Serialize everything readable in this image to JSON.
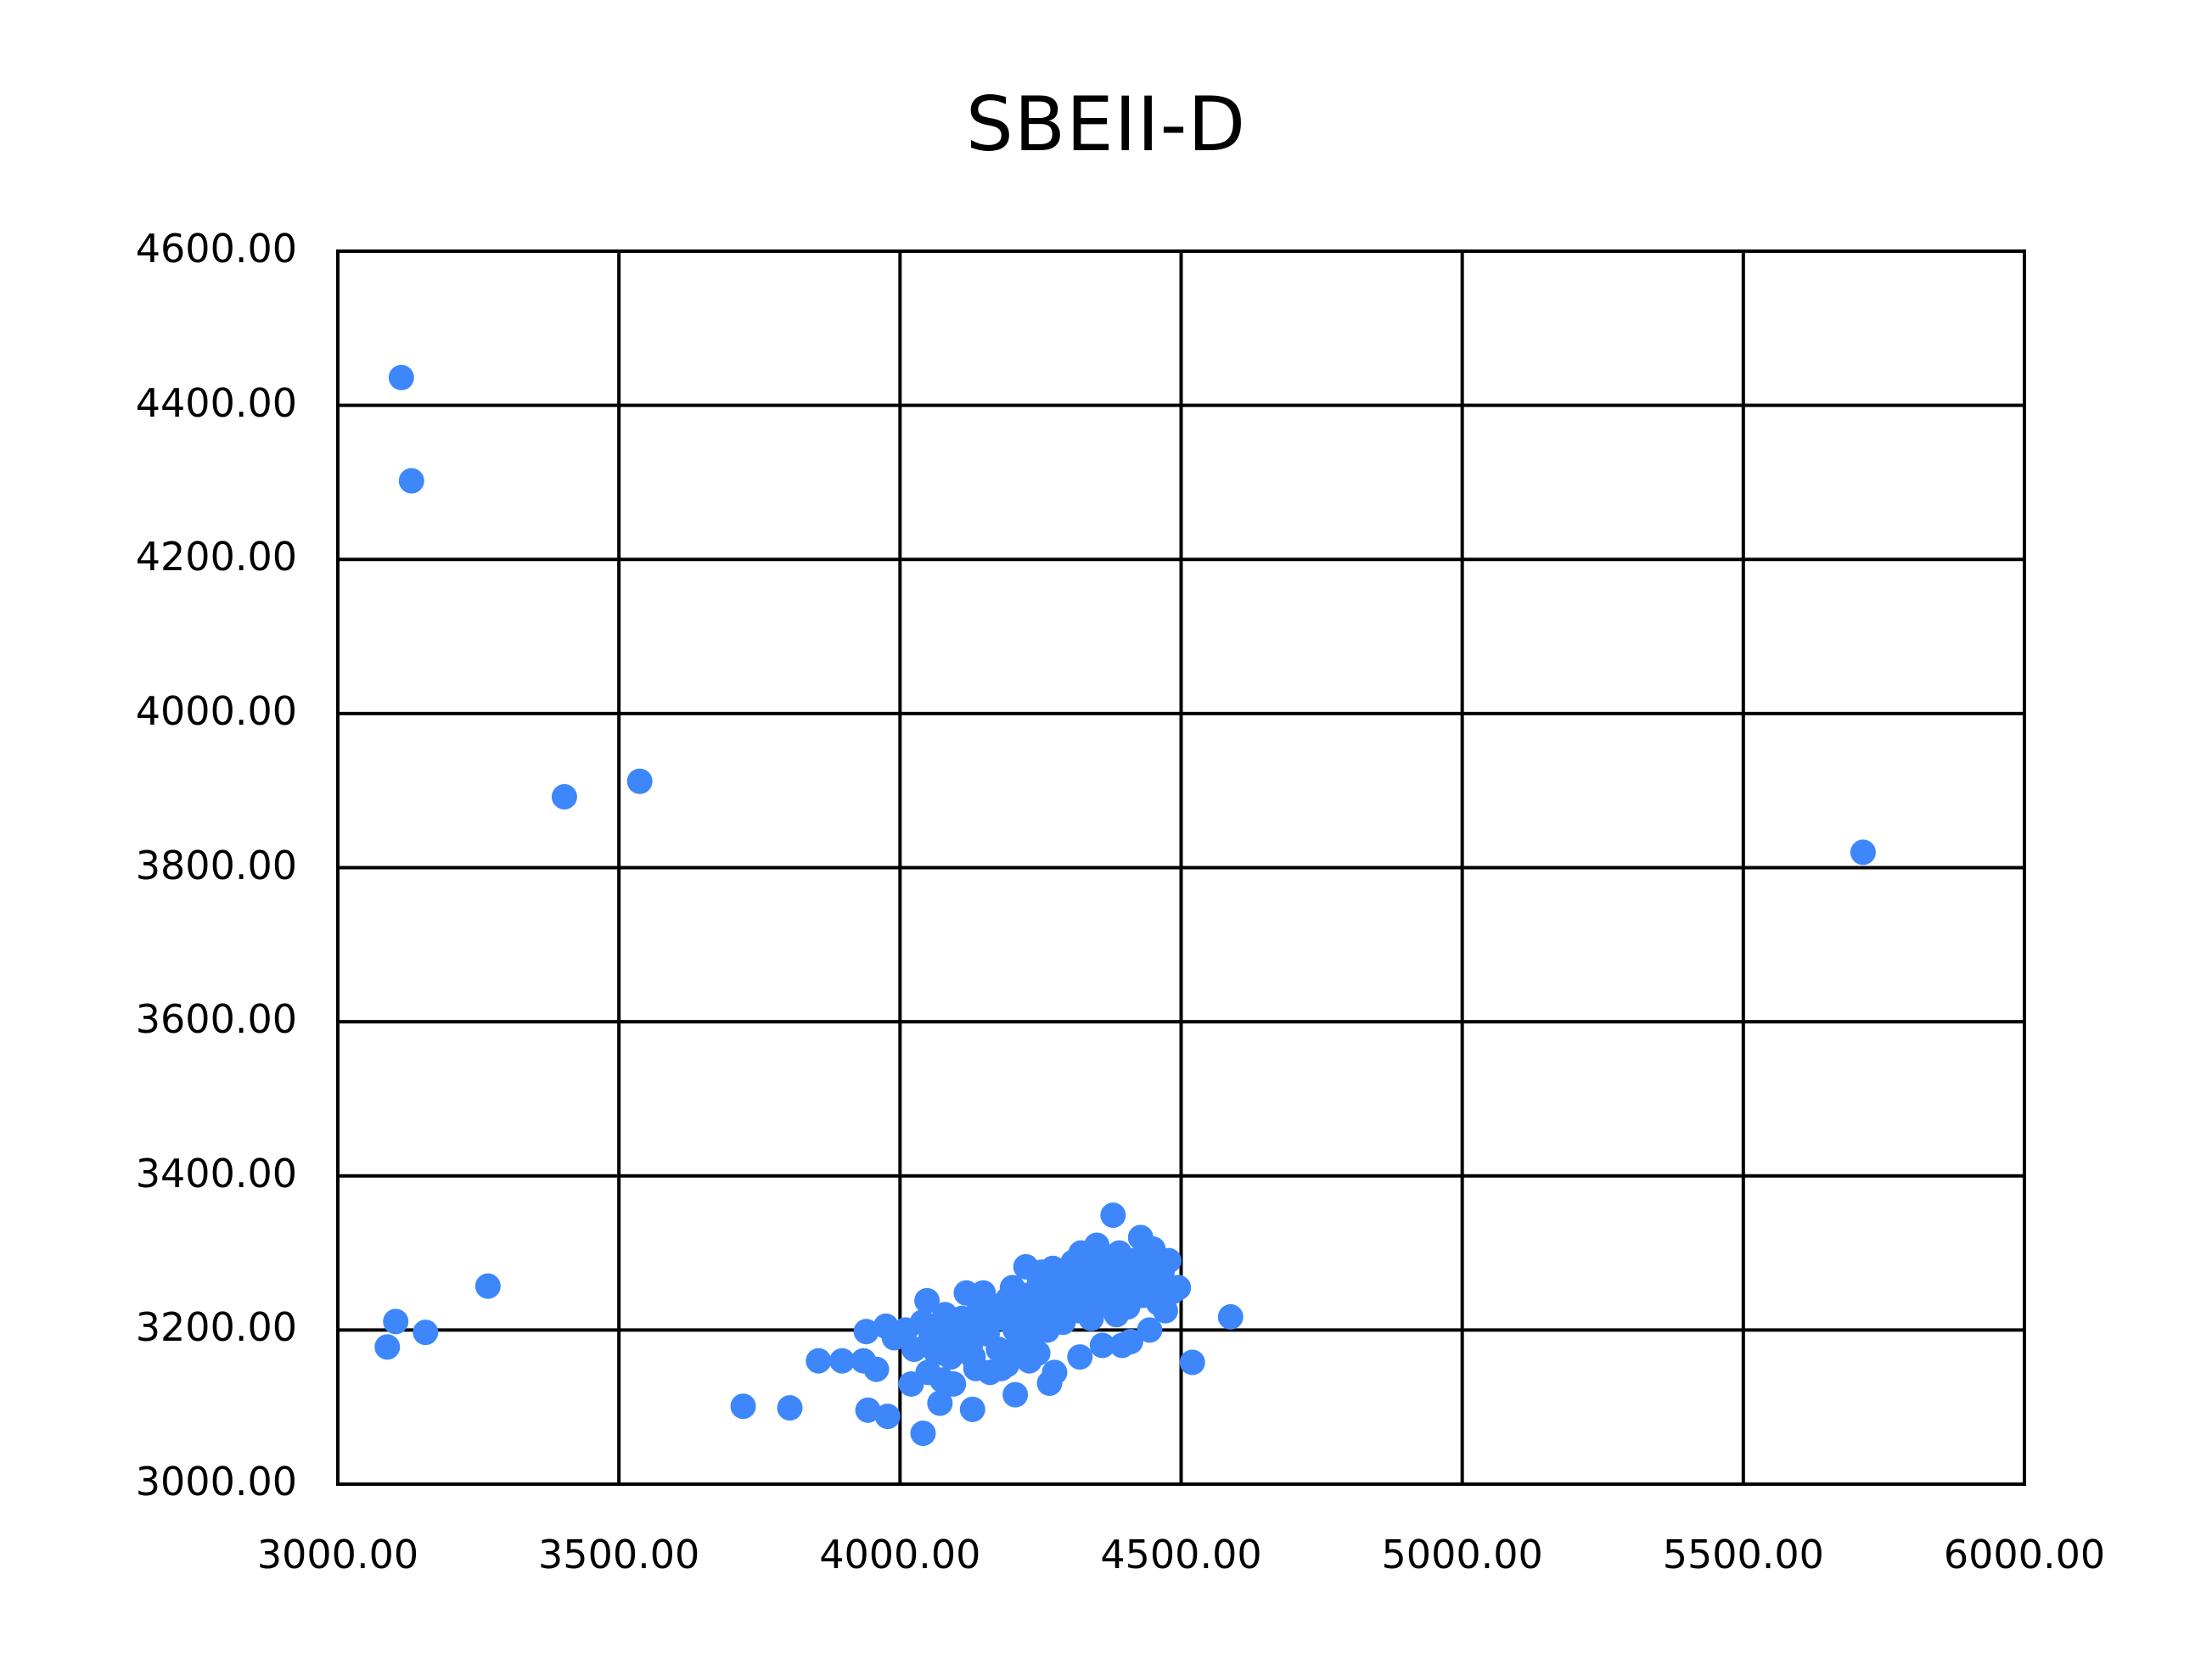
{
  "chart_data": {
    "type": "scatter",
    "title": "SBEII-D",
    "xlabel": "",
    "ylabel": "",
    "xlim": [
      3000,
      6000
    ],
    "ylim": [
      3000,
      4600
    ],
    "grid": true,
    "legend": null,
    "x_ticks": [
      "3000.00",
      "3500.00",
      "4000.00",
      "4500.00",
      "5000.00",
      "5500.00",
      "6000.00"
    ],
    "y_ticks": [
      "4600.00",
      "4400.00",
      "4200.00",
      "4000.00",
      "3800.00",
      "3600.00",
      "3400.00",
      "3200.00",
      "3000.00"
    ],
    "marker_color": "#3d87fb",
    "series": [
      {
        "name": "SBEII-D",
        "points": [
          [
            3113,
            4436
          ],
          [
            3131,
            4302
          ],
          [
            3403,
            3892
          ],
          [
            3537,
            3912
          ],
          [
            5713,
            3820
          ],
          [
            3267,
            3257
          ],
          [
            3103,
            3211
          ],
          [
            3156,
            3197
          ],
          [
            3088,
            3178
          ],
          [
            4588,
            3217
          ],
          [
            4520,
            3158
          ],
          [
            3721,
            3101
          ],
          [
            3804,
            3099
          ],
          [
            3943,
            3096
          ],
          [
            3978,
            3088
          ],
          [
            4041,
            3066
          ],
          [
            4129,
            3097
          ],
          [
            4205,
            3116
          ],
          [
            4266,
            3131
          ],
          [
            4071,
            3105
          ],
          [
            3855,
            3160
          ],
          [
            3897,
            3160
          ],
          [
            3935,
            3160
          ],
          [
            3958,
            3149
          ],
          [
            4379,
            3349
          ],
          [
            3940,
            3198
          ],
          [
            3975,
            3205
          ],
          [
            3990,
            3190
          ],
          [
            4010,
            3200
          ],
          [
            4025,
            3175
          ],
          [
            4040,
            3210
          ],
          [
            4048,
            3238
          ],
          [
            4055,
            3190
          ],
          [
            4065,
            3170
          ],
          [
            4070,
            3205
          ],
          [
            4080,
            3220
          ],
          [
            4090,
            3185
          ],
          [
            4100,
            3200
          ],
          [
            4110,
            3215
          ],
          [
            4118,
            3248
          ],
          [
            4125,
            3180
          ],
          [
            4130,
            3165
          ],
          [
            4135,
            3200
          ],
          [
            4140,
            3225
          ],
          [
            4148,
            3248
          ],
          [
            4155,
            3195
          ],
          [
            4160,
            3210
          ],
          [
            4170,
            3230
          ],
          [
            4175,
            3175
          ],
          [
            4180,
            3150
          ],
          [
            4185,
            3215
          ],
          [
            4192,
            3240
          ],
          [
            4200,
            3255
          ],
          [
            4205,
            3200
          ],
          [
            4210,
            3180
          ],
          [
            4215,
            3225
          ],
          [
            4220,
            3245
          ],
          [
            4224,
            3282
          ],
          [
            4230,
            3210
          ],
          [
            4235,
            3190
          ],
          [
            4240,
            3235
          ],
          [
            4248,
            3262
          ],
          [
            4252,
            3275
          ],
          [
            4258,
            3220
          ],
          [
            4262,
            3200
          ],
          [
            4268,
            3245
          ],
          [
            4272,
            3280
          ],
          [
            4278,
            3255
          ],
          [
            4285,
            3230
          ],
          [
            4290,
            3210
          ],
          [
            4296,
            3265
          ],
          [
            4300,
            3240
          ],
          [
            4308,
            3288
          ],
          [
            4312,
            3255
          ],
          [
            4318,
            3225
          ],
          [
            4322,
            3300
          ],
          [
            4328,
            3270
          ],
          [
            4332,
            3245
          ],
          [
            4340,
            3215
          ],
          [
            4345,
            3285
          ],
          [
            4350,
            3310
          ],
          [
            4356,
            3260
          ],
          [
            4362,
            3235
          ],
          [
            4368,
            3295
          ],
          [
            4372,
            3270
          ],
          [
            4378,
            3240
          ],
          [
            4385,
            3220
          ],
          [
            4390,
            3300
          ],
          [
            4395,
            3275
          ],
          [
            4400,
            3255
          ],
          [
            4405,
            3230
          ],
          [
            4410,
            3185
          ],
          [
            4416,
            3290
          ],
          [
            4422,
            3265
          ],
          [
            4428,
            3320
          ],
          [
            4432,
            3245
          ],
          [
            4438,
            3280
          ],
          [
            4444,
            3200
          ],
          [
            4450,
            3305
          ],
          [
            4455,
            3260
          ],
          [
            4460,
            3235
          ],
          [
            4466,
            3275
          ],
          [
            4472,
            3225
          ],
          [
            4478,
            3290
          ],
          [
            4485,
            3250
          ],
          [
            4495,
            3255
          ],
          [
            4095,
            3130
          ],
          [
            4075,
            3135
          ],
          [
            4135,
            3150
          ],
          [
            4160,
            3145
          ],
          [
            4230,
            3160
          ],
          [
            4275,
            3145
          ],
          [
            4320,
            3165
          ],
          [
            4360,
            3180
          ],
          [
            4395,
            3180
          ],
          [
            4020,
            3130
          ],
          [
            4050,
            3145
          ],
          [
            4090,
            3165
          ],
          [
            4190,
            3155
          ],
          [
            4245,
            3170
          ]
        ]
      }
    ]
  }
}
